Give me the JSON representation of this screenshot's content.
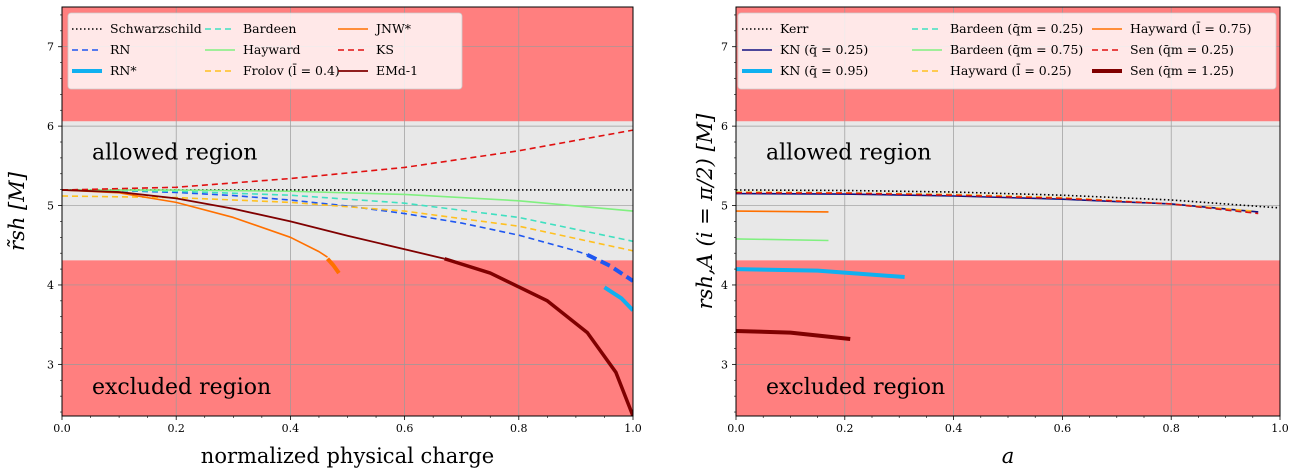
{
  "chart_data": [
    {
      "type": "line",
      "xlabel": "normalized physical charge",
      "ylabel": "r̃sh [M]",
      "xlim": [
        0,
        1
      ],
      "ylim": [
        2.35,
        7.5
      ],
      "xticks": [
        "0.0",
        "0.2",
        "0.4",
        "0.6",
        "0.8",
        "1.0"
      ],
      "yticks": [
        "3",
        "4",
        "5",
        "6",
        "7"
      ],
      "grid": true,
      "legend_placement": "top-left, 3 columns",
      "regions": [
        {
          "label": "",
          "y0": 6.06,
          "y1": 7.5,
          "color": "#ff7f7f"
        },
        {
          "label": "allowed region",
          "y0": 4.31,
          "y1": 6.06,
          "color": "#e8e8e8"
        },
        {
          "label": "excluded region",
          "y0": 2.35,
          "y1": 4.31,
          "color": "#ff7f7f"
        }
      ],
      "series": [
        {
          "name": "Schwarzschild",
          "color": "#000000",
          "dash": "dotted",
          "width": 1.6,
          "points": [
            [
              0,
              5.196
            ],
            [
              1,
              5.196
            ]
          ]
        },
        {
          "name": "RN",
          "color": "#1f57f0",
          "dash": "dashed",
          "width": 1.6,
          "points": [
            [
              0,
              5.196
            ],
            [
              0.1,
              5.188
            ],
            [
              0.2,
              5.165
            ],
            [
              0.3,
              5.126
            ],
            [
              0.4,
              5.069
            ],
            [
              0.5,
              4.994
            ],
            [
              0.6,
              4.899
            ],
            [
              0.7,
              4.779
            ],
            [
              0.8,
              4.627
            ],
            [
              0.9,
              4.43
            ],
            [
              0.92,
              4.38
            ]
          ]
        },
        {
          "name": "RN*",
          "color": "#1f57f0",
          "dash": "dashed",
          "width": 4,
          "points": [
            [
              0.92,
              4.38
            ],
            [
              0.96,
              4.24
            ],
            [
              1.0,
              4.05
            ]
          ]
        },
        {
          "name": "Bardeen",
          "color": "#40e0c0",
          "dash": "dashed",
          "width": 1.6,
          "points": [
            [
              0,
              5.196
            ],
            [
              0.2,
              5.18
            ],
            [
              0.4,
              5.13
            ],
            [
              0.6,
              5.03
            ],
            [
              0.8,
              4.85
            ],
            [
              1.0,
              4.55
            ]
          ]
        },
        {
          "name": "Hayward",
          "color": "#80f080",
          "dash": "solid",
          "width": 1.6,
          "points": [
            [
              0,
              5.196
            ],
            [
              0.2,
              5.195
            ],
            [
              0.4,
              5.18
            ],
            [
              0.6,
              5.14
            ],
            [
              0.8,
              5.06
            ],
            [
              1.0,
              4.93
            ]
          ]
        },
        {
          "name": "Frolov (l̄ = 0.4)",
          "color": "#ffc020",
          "dash": "dashed",
          "width": 1.6,
          "points": [
            [
              0,
              5.12
            ],
            [
              0.2,
              5.1
            ],
            [
              0.4,
              5.04
            ],
            [
              0.6,
              4.93
            ],
            [
              0.8,
              4.74
            ],
            [
              1.0,
              4.43
            ]
          ]
        },
        {
          "name": "JNW*",
          "color": "#ff7000",
          "dash": "solid",
          "width": 1.6,
          "points": [
            [
              0,
              5.196
            ],
            [
              0.1,
              5.16
            ],
            [
              0.2,
              5.04
            ],
            [
              0.3,
              4.85
            ],
            [
              0.4,
              4.6
            ],
            [
              0.45,
              4.42
            ],
            [
              0.465,
              4.35
            ]
          ]
        },
        {
          "name": "JNW* (thick)",
          "color": "#ff7000",
          "dash": "solid",
          "width": 4,
          "points": [
            [
              0.465,
              4.33
            ],
            [
              0.475,
              4.25
            ],
            [
              0.485,
              4.15
            ]
          ]
        },
        {
          "name": "KS",
          "color": "#e01010",
          "dash": "dashed",
          "width": 1.6,
          "points": [
            [
              0,
              5.196
            ],
            [
              0.2,
              5.23
            ],
            [
              0.4,
              5.34
            ],
            [
              0.6,
              5.48
            ],
            [
              0.8,
              5.69
            ],
            [
              1.0,
              5.95
            ]
          ]
        },
        {
          "name": "EMd-1",
          "color": "#800000",
          "dash": "solid",
          "width": 1.8,
          "points": [
            [
              0,
              5.196
            ],
            [
              0.1,
              5.17
            ],
            [
              0.2,
              5.09
            ],
            [
              0.3,
              4.96
            ],
            [
              0.4,
              4.8
            ],
            [
              0.5,
              4.62
            ],
            [
              0.6,
              4.45
            ],
            [
              0.67,
              4.33
            ]
          ]
        },
        {
          "name": "EMd-1 (thick)",
          "color": "#800000",
          "dash": "solid",
          "width": 3.5,
          "points": [
            [
              0.67,
              4.33
            ],
            [
              0.75,
              4.15
            ],
            [
              0.85,
              3.8
            ],
            [
              0.92,
              3.4
            ],
            [
              0.97,
              2.9
            ],
            [
              1.0,
              2.35
            ]
          ]
        },
        {
          "name": "RN* (cyan)",
          "color": "#10b0f0",
          "dash": "solid",
          "width": 4,
          "points": [
            [
              0.95,
              3.97
            ],
            [
              0.98,
              3.83
            ],
            [
              1.0,
              3.68
            ]
          ]
        }
      ],
      "legend": [
        {
          "name": "Schwarzschild",
          "color": "#000000",
          "dash": "dotted",
          "width": 1.6
        },
        {
          "name": "RN",
          "color": "#1f57f0",
          "dash": "dashed",
          "width": 1.6
        },
        {
          "name": "RN*",
          "color": "#10b0f0",
          "dash": "solid",
          "width": 4
        },
        {
          "name": "Bardeen",
          "color": "#40e0c0",
          "dash": "dashed",
          "width": 1.6
        },
        {
          "name": "Hayward",
          "color": "#80f080",
          "dash": "solid",
          "width": 1.6
        },
        {
          "name": "Frolov (l̄ = 0.4)",
          "color": "#ffc020",
          "dash": "dashed",
          "width": 1.6
        },
        {
          "name": "JNW*",
          "color": "#ff7000",
          "dash": "solid",
          "width": 1.6
        },
        {
          "name": "KS",
          "color": "#e01010",
          "dash": "dashed",
          "width": 1.6
        },
        {
          "name": "EMd-1",
          "color": "#800000",
          "dash": "solid",
          "width": 1.8
        }
      ]
    },
    {
      "type": "line",
      "xlabel": "a",
      "ylabel": "rsh,A (i = π/2) [M]",
      "xlim": [
        0,
        1
      ],
      "ylim": [
        2.35,
        7.5
      ],
      "xticks": [
        "0.0",
        "0.2",
        "0.4",
        "0.6",
        "0.8",
        "1.0"
      ],
      "yticks": [
        "3",
        "4",
        "5",
        "6",
        "7"
      ],
      "grid": true,
      "legend_placement": "top, 3 columns",
      "regions": [
        {
          "label": "",
          "y0": 6.06,
          "y1": 7.5,
          "color": "#ff7f7f"
        },
        {
          "label": "allowed region",
          "y0": 4.31,
          "y1": 6.06,
          "color": "#e8e8e8"
        },
        {
          "label": "excluded region",
          "y0": 2.35,
          "y1": 4.31,
          "color": "#ff7f7f"
        }
      ],
      "series": [
        {
          "name": "Kerr",
          "color": "#000000",
          "dash": "dotted",
          "width": 1.6,
          "points": [
            [
              0,
              5.196
            ],
            [
              0.2,
              5.19
            ],
            [
              0.4,
              5.17
            ],
            [
              0.6,
              5.13
            ],
            [
              0.8,
              5.07
            ],
            [
              1.0,
              4.97
            ]
          ]
        },
        {
          "name": "KN (q̄ = 0.25)",
          "color": "#101080",
          "dash": "solid",
          "width": 1.6,
          "points": [
            [
              0,
              5.15
            ],
            [
              0.2,
              5.145
            ],
            [
              0.4,
              5.12
            ],
            [
              0.6,
              5.08
            ],
            [
              0.8,
              5.02
            ],
            [
              0.96,
              4.92
            ]
          ]
        },
        {
          "name": "KN (q̄ = 0.95)",
          "color": "#10b0f0",
          "dash": "solid",
          "width": 4,
          "points": [
            [
              0,
              4.2
            ],
            [
              0.15,
              4.18
            ],
            [
              0.31,
              4.1
            ]
          ]
        },
        {
          "name": "Bardeen (q̄m = 0.25)",
          "color": "#40e0c0",
          "dash": "dashed",
          "width": 1.6,
          "points": [
            [
              0,
              5.17
            ],
            [
              0.2,
              5.16
            ],
            [
              0.4,
              5.14
            ],
            [
              0.6,
              5.09
            ],
            [
              0.8,
              5.02
            ],
            [
              0.93,
              4.92
            ]
          ]
        },
        {
          "name": "Bardeen (q̄m = 0.75)",
          "color": "#80f080",
          "dash": "solid",
          "width": 1.6,
          "points": [
            [
              0,
              4.58
            ],
            [
              0.17,
              4.56
            ]
          ]
        },
        {
          "name": "Hayward (l̄ = 0.25)",
          "color": "#ffc020",
          "dash": "dashed",
          "width": 1.6,
          "points": [
            [
              0,
              5.17
            ],
            [
              0.2,
              5.16
            ],
            [
              0.4,
              5.14
            ],
            [
              0.6,
              5.1
            ],
            [
              0.8,
              5.02
            ],
            [
              0.95,
              4.93
            ]
          ]
        },
        {
          "name": "Hayward (l̄ = 0.75)",
          "color": "#ff7000",
          "dash": "solid",
          "width": 1.6,
          "points": [
            [
              0,
              4.93
            ],
            [
              0.17,
              4.92
            ]
          ]
        },
        {
          "name": "Sen (q̄m = 0.25)",
          "color": "#e01010",
          "dash": "dashed",
          "width": 1.6,
          "points": [
            [
              0,
              5.16
            ],
            [
              0.2,
              5.155
            ],
            [
              0.4,
              5.13
            ],
            [
              0.6,
              5.09
            ],
            [
              0.8,
              5.02
            ],
            [
              0.96,
              4.9
            ]
          ]
        },
        {
          "name": "Sen (q̄m = 1.25)",
          "color": "#800000",
          "dash": "solid",
          "width": 4,
          "points": [
            [
              0,
              3.42
            ],
            [
              0.1,
              3.4
            ],
            [
              0.21,
              3.32
            ]
          ]
        }
      ],
      "legend": [
        {
          "name": "Kerr",
          "color": "#000000",
          "dash": "dotted",
          "width": 1.6
        },
        {
          "name": "KN (q̄ = 0.25)",
          "color": "#101080",
          "dash": "solid",
          "width": 1.6
        },
        {
          "name": "KN (q̄ = 0.95)",
          "color": "#10b0f0",
          "dash": "solid",
          "width": 4
        },
        {
          "name": "Bardeen (q̄m = 0.25)",
          "color": "#40e0c0",
          "dash": "dashed",
          "width": 1.6
        },
        {
          "name": "Bardeen (q̄m = 0.75)",
          "color": "#80f080",
          "dash": "solid",
          "width": 1.6
        },
        {
          "name": "Hayward (l̄ = 0.25)",
          "color": "#ffc020",
          "dash": "dashed",
          "width": 1.6
        },
        {
          "name": "Hayward (l̄ = 0.75)",
          "color": "#ff7000",
          "dash": "solid",
          "width": 1.6
        },
        {
          "name": "Sen (q̄m = 0.25)",
          "color": "#e01010",
          "dash": "dashed",
          "width": 1.6
        },
        {
          "name": "Sen (q̄m = 1.25)",
          "color": "#800000",
          "dash": "solid",
          "width": 4
        }
      ]
    }
  ]
}
